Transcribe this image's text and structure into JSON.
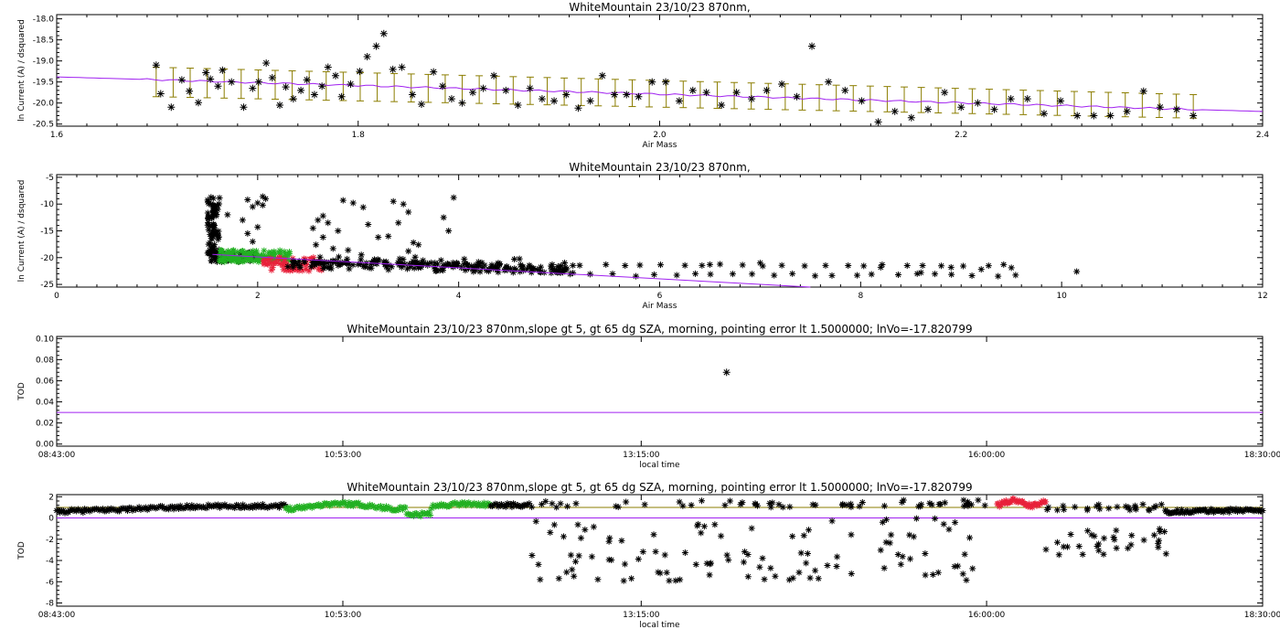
{
  "colors": {
    "black": "#000000",
    "purple": "#a020f0",
    "olive": "#8b7d00",
    "green": "#22b022",
    "red": "#e8203a"
  },
  "chart_data": [
    {
      "id": "p1",
      "type": "scatter",
      "title": "WhiteMountain 23/10/23 870nm,",
      "xlabel": "Air Mass",
      "ylabel": "ln Current (A) / dsquared",
      "xlim": [
        1.6,
        2.4
      ],
      "ylim": [
        -20.55,
        -17.9
      ],
      "xticks": [
        1.6,
        1.8,
        2.0,
        2.2,
        2.4
      ],
      "xtick_labels": [
        "1.6",
        "1.8",
        "2.0",
        "2.2",
        "2.4"
      ],
      "yticks": [
        -20.5,
        -20.0,
        -19.5,
        -19.0,
        -18.5,
        -18.0
      ],
      "ytick_labels": [
        "-20.5",
        "-20.0",
        "-19.5",
        "-19.0",
        "-18.5",
        "-18.0"
      ],
      "points": [
        [
          1.666,
          -19.1
        ],
        [
          1.669,
          -19.78
        ],
        [
          1.676,
          -20.1
        ],
        [
          1.683,
          -19.45
        ],
        [
          1.688,
          -19.72
        ],
        [
          1.694,
          -19.99
        ],
        [
          1.699,
          -19.28
        ],
        [
          1.702,
          -19.43
        ],
        [
          1.707,
          -19.6
        ],
        [
          1.71,
          -19.22
        ],
        [
          1.716,
          -19.5
        ],
        [
          1.724,
          -20.1
        ],
        [
          1.73,
          -19.65
        ],
        [
          1.734,
          -19.5
        ],
        [
          1.739,
          -19.05
        ],
        [
          1.743,
          -19.4
        ],
        [
          1.748,
          -20.05
        ],
        [
          1.752,
          -19.62
        ],
        [
          1.757,
          -19.9
        ],
        [
          1.762,
          -19.7
        ],
        [
          1.766,
          -19.45
        ],
        [
          1.771,
          -19.8
        ],
        [
          1.776,
          -19.6
        ],
        [
          1.78,
          -19.15
        ],
        [
          1.785,
          -19.35
        ],
        [
          1.789,
          -19.85
        ],
        [
          1.795,
          -19.55
        ],
        [
          1.801,
          -19.25
        ],
        [
          1.806,
          -18.9
        ],
        [
          1.812,
          -18.65
        ],
        [
          1.817,
          -18.35
        ],
        [
          1.823,
          -19.2
        ],
        [
          1.829,
          -19.15
        ],
        [
          1.836,
          -19.8
        ],
        [
          1.842,
          -20.03
        ],
        [
          1.85,
          -19.26
        ],
        [
          1.856,
          -19.6
        ],
        [
          1.862,
          -19.9
        ],
        [
          1.869,
          -20.0
        ],
        [
          1.876,
          -19.75
        ],
        [
          1.883,
          -19.65
        ],
        [
          1.89,
          -19.35
        ],
        [
          1.898,
          -19.7
        ],
        [
          1.906,
          -20.05
        ],
        [
          1.914,
          -19.65
        ],
        [
          1.922,
          -19.9
        ],
        [
          1.93,
          -19.95
        ],
        [
          1.938,
          -19.8
        ],
        [
          1.946,
          -20.12
        ],
        [
          1.954,
          -19.95
        ],
        [
          1.962,
          -19.35
        ],
        [
          1.97,
          -19.8
        ],
        [
          1.978,
          -19.8
        ],
        [
          1.986,
          -19.85
        ],
        [
          1.995,
          -19.5
        ],
        [
          2.004,
          -19.5
        ],
        [
          2.013,
          -19.95
        ],
        [
          2.022,
          -19.7
        ],
        [
          2.031,
          -19.75
        ],
        [
          2.041,
          -20.05
        ],
        [
          2.051,
          -19.75
        ],
        [
          2.061,
          -19.9
        ],
        [
          2.071,
          -19.7
        ],
        [
          2.081,
          -19.55
        ],
        [
          2.091,
          -19.85
        ],
        [
          2.101,
          -18.65
        ],
        [
          2.112,
          -19.5
        ],
        [
          2.123,
          -19.7
        ],
        [
          2.134,
          -19.95
        ],
        [
          2.145,
          -20.45
        ],
        [
          2.156,
          -20.2
        ],
        [
          2.167,
          -20.35
        ],
        [
          2.178,
          -20.15
        ],
        [
          2.189,
          -19.75
        ],
        [
          2.2,
          -20.1
        ],
        [
          2.211,
          -20.0
        ],
        [
          2.222,
          -20.15
        ],
        [
          2.233,
          -19.9
        ],
        [
          2.244,
          -19.9
        ],
        [
          2.255,
          -20.25
        ],
        [
          2.266,
          -19.95
        ],
        [
          2.277,
          -20.3
        ],
        [
          2.288,
          -20.3
        ],
        [
          2.299,
          -20.3
        ],
        [
          2.31,
          -20.2
        ],
        [
          2.321,
          -19.72
        ],
        [
          2.332,
          -20.1
        ],
        [
          2.343,
          -20.15
        ],
        [
          2.354,
          -20.3
        ]
      ],
      "fit_line": [
        [
          1.6,
          -19.38
        ],
        [
          2.4,
          -20.2
        ]
      ],
      "error_bars": {
        "x_from": 1.666,
        "x_to": 2.354,
        "center_start": -19.5,
        "center_end": -20.08,
        "half_width_start": 0.35,
        "half_width_end": 0.28
      }
    },
    {
      "id": "p2",
      "type": "scatter",
      "title": "WhiteMountain 23/10/23 870nm,",
      "xlabel": "Air Mass",
      "ylabel": "ln Current (A) / dsquared",
      "xlim": [
        0,
        12
      ],
      "ylim": [
        -25.5,
        -4.5
      ],
      "xticks": [
        0,
        2,
        4,
        6,
        8,
        10,
        12
      ],
      "xtick_labels": [
        "0",
        "2",
        "4",
        "6",
        "8",
        "10",
        "12"
      ],
      "yticks": [
        -25,
        -20,
        -15,
        -10,
        -5
      ],
      "ytick_labels": [
        "-25",
        "-20",
        "-15",
        "-10",
        "-5"
      ],
      "fit_line": [
        [
          1.55,
          -19.4
        ],
        [
          7.5,
          -25.5
        ]
      ]
    },
    {
      "id": "p3",
      "type": "scatter",
      "title": "WhiteMountain 23/10/23 870nm,slope gt 5, gt 65 dg SZA, morning, pointing error lt 1.5000000; lnVo=-17.820799",
      "xlabel": "local time",
      "ylabel": "TOD",
      "xlim": [
        0,
        1
      ],
      "ylim": [
        -0.002,
        0.102
      ],
      "xticks": [
        0,
        0.2373,
        0.4847,
        0.7711,
        1.0
      ],
      "xtick_labels": [
        "08:43:00",
        "10:53:00",
        "13:15:00",
        "16:00:00",
        "18:30:00"
      ],
      "yticks": [
        0,
        0.02,
        0.04,
        0.06,
        0.08,
        0.1
      ],
      "ytick_labels": [
        "0.00",
        "0.02",
        "0.04",
        "0.06",
        "0.08",
        "0.10"
      ],
      "points": [
        [
          0.5555,
          0.068
        ]
      ],
      "reference_line": 0.03
    },
    {
      "id": "p4",
      "type": "scatter",
      "title": "WhiteMountain 23/10/23 870nm,slope gt 5, gt 65 dg SZA, morning, pointing error lt 1.5000000; lnVo=-17.820799",
      "xlabel": "local time",
      "ylabel": "TOD",
      "xlim": [
        0,
        1
      ],
      "ylim": [
        -8.3,
        2.2
      ],
      "xticks": [
        0,
        0.2373,
        0.4847,
        0.7711,
        1.0
      ],
      "xtick_labels": [
        "08:43:00",
        "10:53:00",
        "13:15:00",
        "16:00:00",
        "18:30:00"
      ],
      "yticks": [
        -8,
        -6,
        -4,
        -2,
        0,
        2
      ],
      "ytick_labels": [
        "-8",
        "-6",
        "-4",
        "-2",
        "0",
        "2"
      ],
      "reference_lines": [
        0,
        1.0
      ]
    }
  ]
}
